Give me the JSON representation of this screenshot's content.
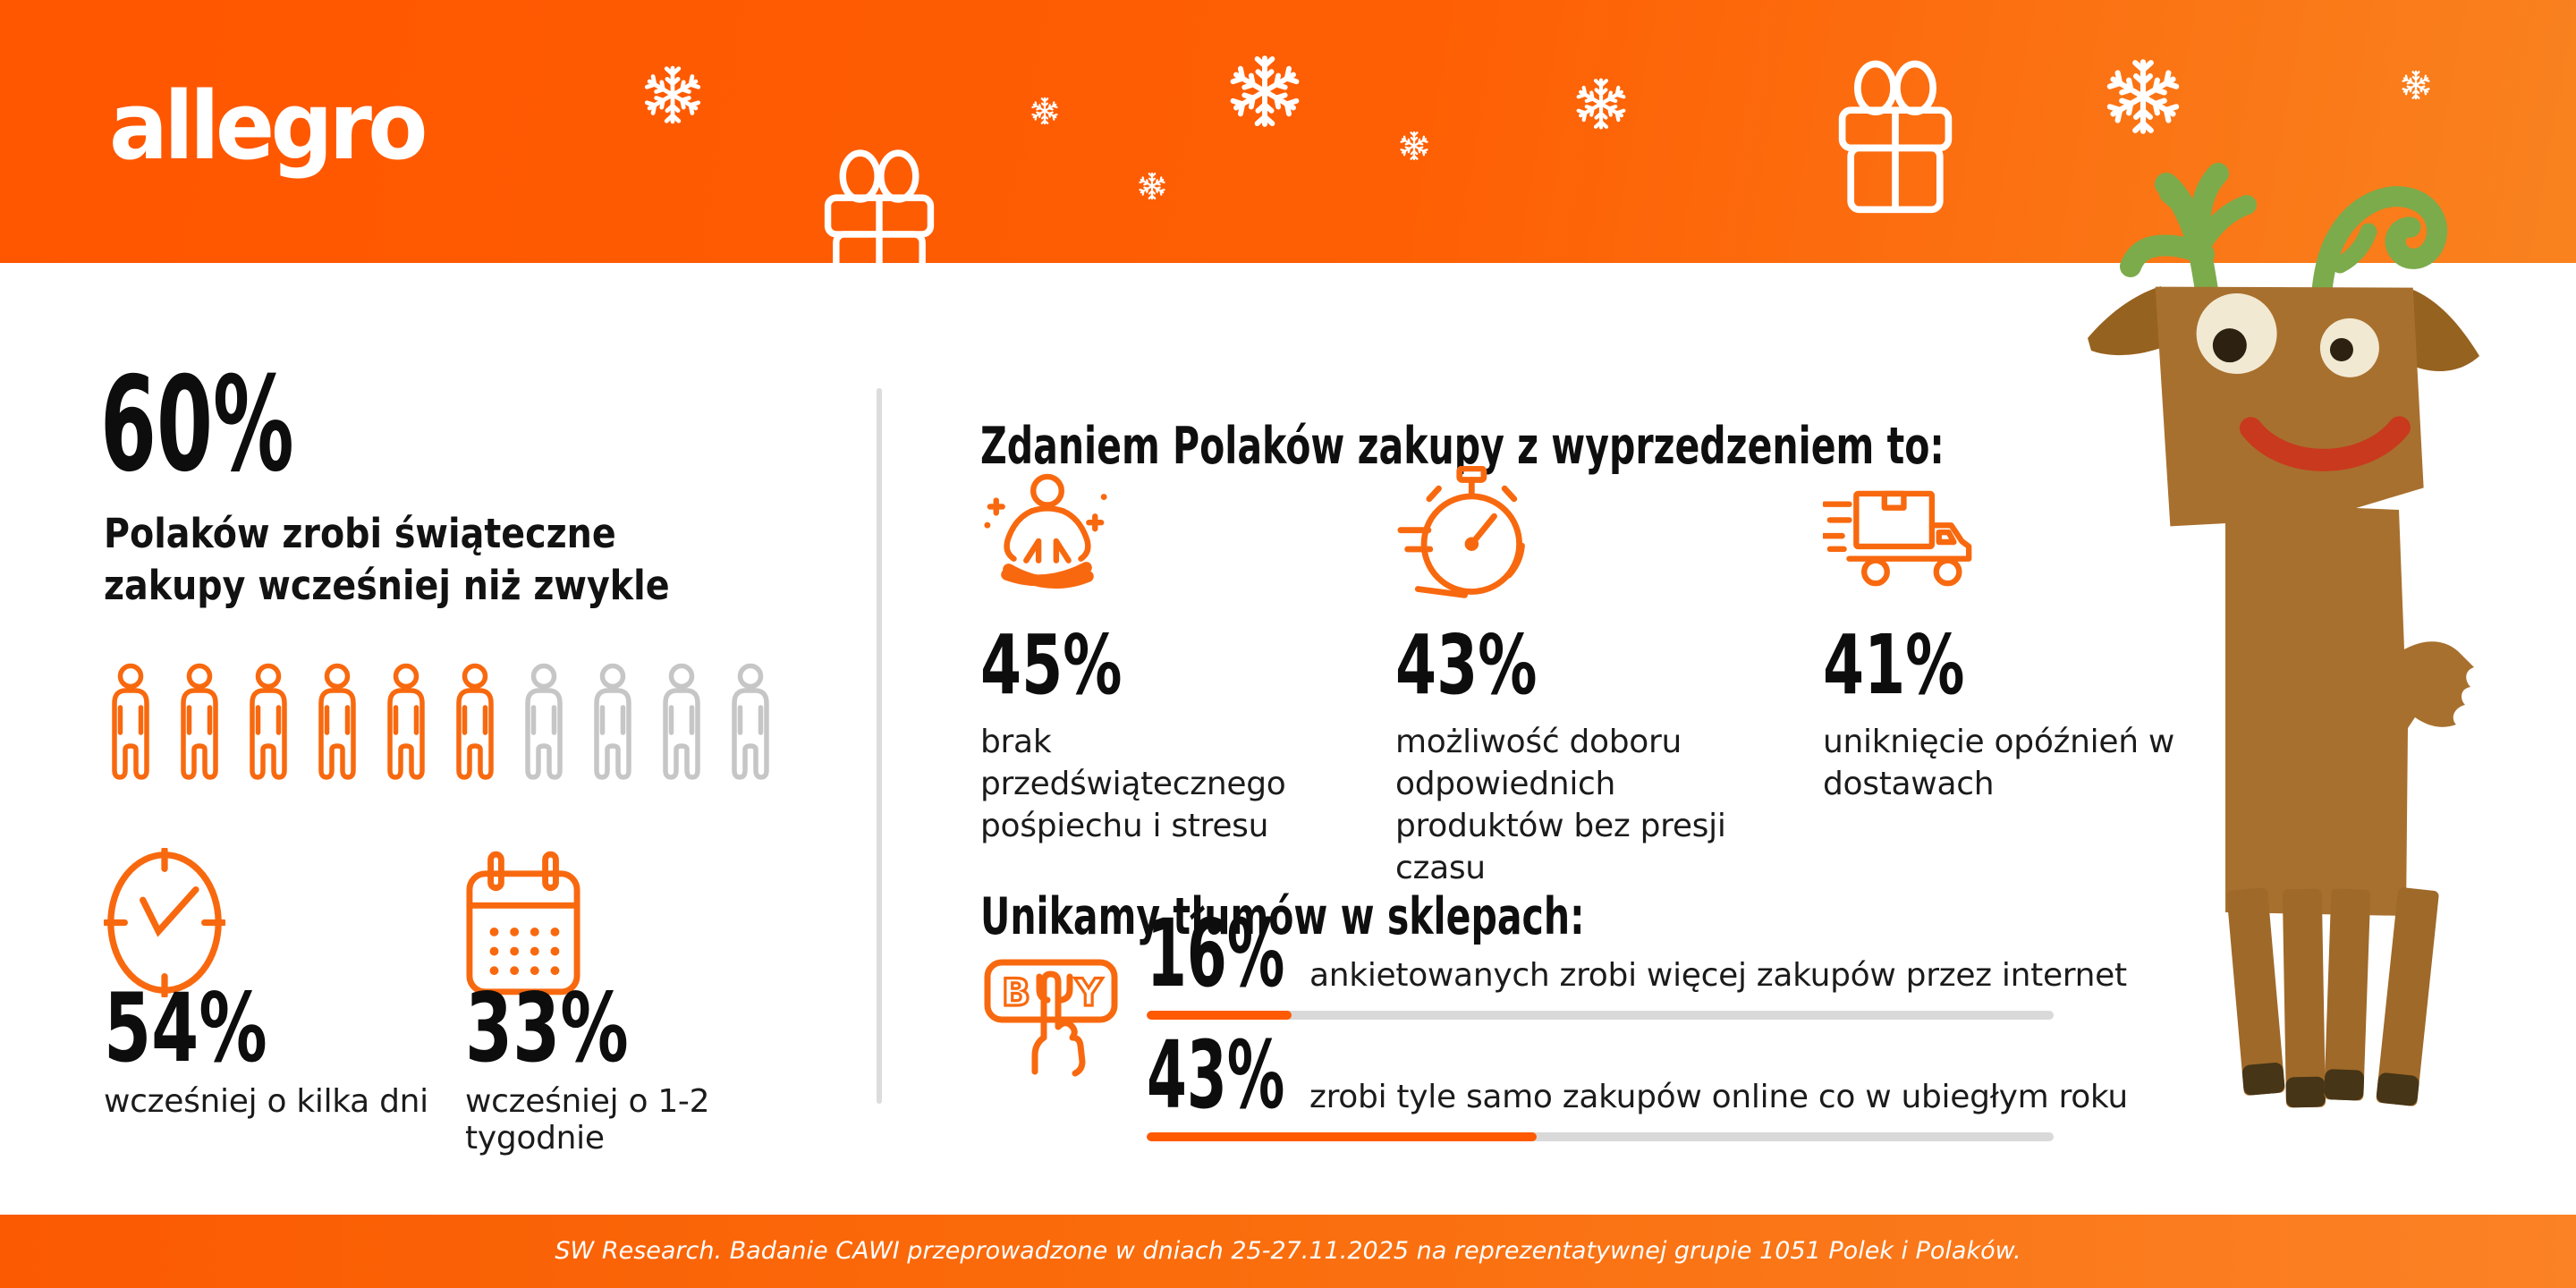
{
  "brand": {
    "logo": "allegro"
  },
  "colors": {
    "banner_orange": "#ff5a00",
    "icon_orange": "#f8690f",
    "pictogram_gray": "#c6c6c6",
    "bar_track_gray": "#d9d9d9",
    "text_black": "#0d0d0d"
  },
  "banner": {
    "decorations": {
      "snowflakes": 8,
      "gifts": 2
    }
  },
  "hero": {
    "value": "60%",
    "line1": "Polaków zrobi świąteczne",
    "line2": "zakupy wcześniej niż zwykle",
    "pictogram": {
      "total": 10,
      "highlighted": 6
    },
    "substats": [
      {
        "icon": "clock-icon",
        "value": "54%",
        "label": "wcześniej o kilka dni"
      },
      {
        "icon": "calendar-icon",
        "value": "33%",
        "label": "wcześniej o 1-2 tygodnie"
      }
    ]
  },
  "reasons": {
    "title": "Zdaniem Polaków zakupy z wyprzedzeniem to:",
    "items": [
      {
        "icon": "meditation-icon",
        "value": "45%",
        "label": "brak przedświątecznego pośpiechu i stresu"
      },
      {
        "icon": "stopwatch-icon",
        "value": "43%",
        "label": "możliwość doboru odpowiednich produktów bez presji czasu"
      },
      {
        "icon": "delivery-truck-icon",
        "value": "41%",
        "label": "uniknięcie opóźnień w dostawach"
      }
    ]
  },
  "online": {
    "title": "Unikamy tłumów w sklepach:",
    "icon": "buy-button-icon",
    "rows": [
      {
        "value": "16%",
        "percent": 16,
        "label": "ankietowanych zrobi więcej zakupów przez internet"
      },
      {
        "value": "43%",
        "percent": 43,
        "label": "zrobi tyle samo zakupów online co w ubiegłym roku"
      }
    ]
  },
  "footer": {
    "source": "SW Research. Badanie CAWI przeprowadzone w dniach 25-27.11.2025 na reprezentatywnej grupie 1051 Polek i Polaków."
  },
  "chart_data": [
    {
      "type": "bar",
      "title": "60% Polaków zrobi świąteczne zakupy wcześniej niż zwykle",
      "categories": [
        "wcześniej o kilka dni",
        "wcześniej o 1-2 tygodnie"
      ],
      "values": [
        54,
        33
      ],
      "unit": "%",
      "note": "pictogram: 6 of 10 person icons highlighted = 60%"
    },
    {
      "type": "bar",
      "title": "Zdaniem Polaków zakupy z wyprzedzeniem to",
      "categories": [
        "brak przedświątecznego pośpiechu i stresu",
        "możliwość doboru odpowiednich produktów bez presji czasu",
        "uniknięcie opóźnień w dostawach"
      ],
      "values": [
        45,
        43,
        41
      ],
      "unit": "%"
    },
    {
      "type": "bar",
      "title": "Unikamy tłumów w sklepach",
      "categories": [
        "ankietowanych zrobi więcej zakupów przez internet",
        "zrobi tyle samo zakupów online co w ubiegłym roku"
      ],
      "values": [
        16,
        43
      ],
      "unit": "%",
      "xlim": [
        0,
        100
      ]
    }
  ]
}
